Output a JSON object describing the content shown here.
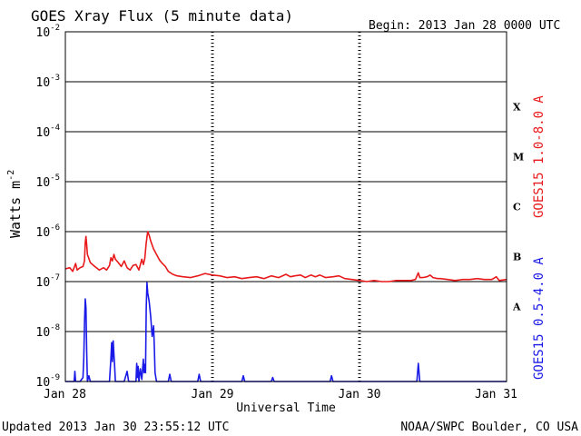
{
  "chart_data": {
    "type": "line",
    "title": "GOES Xray Flux (5 minute data)",
    "begin_label": "Begin:  2013 Jan 28 0000 UTC",
    "ylabel": "Watts m",
    "ylabel_sup": "-2",
    "xlabel": "Universal Time",
    "y_scale": "log",
    "ylim": [
      1e-09,
      0.01
    ],
    "y_ticks": [
      {
        "mant": "10",
        "exp": "-2",
        "value": 0.01
      },
      {
        "mant": "10",
        "exp": "-3",
        "value": 0.001
      },
      {
        "mant": "10",
        "exp": "-4",
        "value": 0.0001
      },
      {
        "mant": "10",
        "exp": "-5",
        "value": 1e-05
      },
      {
        "mant": "10",
        "exp": "-6",
        "value": 1e-06
      },
      {
        "mant": "10",
        "exp": "-7",
        "value": 1e-07
      },
      {
        "mant": "10",
        "exp": "-8",
        "value": 1e-08
      },
      {
        "mant": "10",
        "exp": "-9",
        "value": 1e-09
      }
    ],
    "x_unit": "days",
    "xlim": [
      0,
      3
    ],
    "x_ticks": [
      {
        "label": "Jan 28",
        "value": 0
      },
      {
        "label": "Jan 29",
        "value": 1
      },
      {
        "label": "Jan 30",
        "value": 2
      },
      {
        "label": "Jan 31",
        "value": 3
      }
    ],
    "flare_classes": [
      {
        "label": "X",
        "value": 0.000316
      },
      {
        "label": "M",
        "value": 3.16e-05
      },
      {
        "label": "C",
        "value": 3.16e-06
      },
      {
        "label": "B",
        "value": 3.16e-07
      },
      {
        "label": "A",
        "value": 3.16e-08
      }
    ],
    "grid": "horizontal lines at each decade; dotted vertical lines at day boundaries",
    "series": [
      {
        "name": "GOES15 1.0-8.0 A",
        "color": "#e8191a",
        "points": [
          [
            0.0,
            1.8e-07
          ],
          [
            0.03,
            1.9e-07
          ],
          [
            0.05,
            1.6e-07
          ],
          [
            0.07,
            2.3e-07
          ],
          [
            0.08,
            1.7e-07
          ],
          [
            0.1,
            1.9e-07
          ],
          [
            0.12,
            2e-07
          ],
          [
            0.13,
            2.6e-07
          ],
          [
            0.135,
            6e-07
          ],
          [
            0.14,
            8e-07
          ],
          [
            0.145,
            5.5e-07
          ],
          [
            0.15,
            3.5e-07
          ],
          [
            0.17,
            2.4e-07
          ],
          [
            0.2,
            2e-07
          ],
          [
            0.23,
            1.7e-07
          ],
          [
            0.26,
            1.9e-07
          ],
          [
            0.28,
            1.7e-07
          ],
          [
            0.3,
            2.1e-07
          ],
          [
            0.31,
            3e-07
          ],
          [
            0.32,
            2.6e-07
          ],
          [
            0.33,
            3.5e-07
          ],
          [
            0.34,
            2.8e-07
          ],
          [
            0.36,
            2.4e-07
          ],
          [
            0.38,
            2e-07
          ],
          [
            0.4,
            2.6e-07
          ],
          [
            0.42,
            1.9e-07
          ],
          [
            0.44,
            1.7e-07
          ],
          [
            0.46,
            2.1e-07
          ],
          [
            0.48,
            2.2e-07
          ],
          [
            0.5,
            1.7e-07
          ],
          [
            0.52,
            2.8e-07
          ],
          [
            0.53,
            2.2e-07
          ],
          [
            0.54,
            2.9e-07
          ],
          [
            0.55,
            6e-07
          ],
          [
            0.56,
            1e-06
          ],
          [
            0.57,
            8.5e-07
          ],
          [
            0.58,
            6.5e-07
          ],
          [
            0.6,
            4.5e-07
          ],
          [
            0.62,
            3.5e-07
          ],
          [
            0.64,
            2.7e-07
          ],
          [
            0.66,
            2.3e-07
          ],
          [
            0.68,
            2e-07
          ],
          [
            0.7,
            1.6e-07
          ],
          [
            0.73,
            1.4e-07
          ],
          [
            0.76,
            1.3e-07
          ],
          [
            0.8,
            1.25e-07
          ],
          [
            0.85,
            1.2e-07
          ],
          [
            0.9,
            1.3e-07
          ],
          [
            0.95,
            1.45e-07
          ],
          [
            1.0,
            1.35e-07
          ],
          [
            1.05,
            1.3e-07
          ],
          [
            1.1,
            1.2e-07
          ],
          [
            1.15,
            1.25e-07
          ],
          [
            1.2,
            1.15e-07
          ],
          [
            1.25,
            1.2e-07
          ],
          [
            1.3,
            1.25e-07
          ],
          [
            1.35,
            1.15e-07
          ],
          [
            1.4,
            1.3e-07
          ],
          [
            1.45,
            1.2e-07
          ],
          [
            1.5,
            1.4e-07
          ],
          [
            1.53,
            1.25e-07
          ],
          [
            1.56,
            1.3e-07
          ],
          [
            1.6,
            1.35e-07
          ],
          [
            1.63,
            1.2e-07
          ],
          [
            1.67,
            1.35e-07
          ],
          [
            1.7,
            1.25e-07
          ],
          [
            1.73,
            1.35e-07
          ],
          [
            1.77,
            1.2e-07
          ],
          [
            1.82,
            1.25e-07
          ],
          [
            1.86,
            1.3e-07
          ],
          [
            1.9,
            1.15e-07
          ],
          [
            1.95,
            1.1e-07
          ],
          [
            2.0,
            1.05e-07
          ],
          [
            2.05,
            1e-07
          ],
          [
            2.1,
            1.05e-07
          ],
          [
            2.15,
            1e-07
          ],
          [
            2.2,
            1e-07
          ],
          [
            2.25,
            1.05e-07
          ],
          [
            2.3,
            1.05e-07
          ],
          [
            2.35,
            1.05e-07
          ],
          [
            2.38,
            1.1e-07
          ],
          [
            2.4,
            1.5e-07
          ],
          [
            2.41,
            1.2e-07
          ],
          [
            2.43,
            1.2e-07
          ],
          [
            2.46,
            1.25e-07
          ],
          [
            2.48,
            1.35e-07
          ],
          [
            2.5,
            1.2e-07
          ],
          [
            2.53,
            1.15e-07
          ],
          [
            2.55,
            1.15e-07
          ],
          [
            2.6,
            1.1e-07
          ],
          [
            2.65,
            1.05e-07
          ],
          [
            2.7,
            1.1e-07
          ],
          [
            2.75,
            1.1e-07
          ],
          [
            2.8,
            1.15e-07
          ],
          [
            2.85,
            1.1e-07
          ],
          [
            2.9,
            1.1e-07
          ],
          [
            2.93,
            1.25e-07
          ],
          [
            2.95,
            1.05e-07
          ],
          [
            3.0,
            1.1e-07
          ]
        ]
      },
      {
        "name": "GOES15 0.5-4.0 A",
        "color": "#1a1ae8",
        "points": [
          [
            0.0,
            1e-09
          ],
          [
            0.06,
            1e-09
          ],
          [
            0.065,
            1.6e-09
          ],
          [
            0.07,
            1e-09
          ],
          [
            0.1,
            1e-09
          ],
          [
            0.12,
            1.2e-09
          ],
          [
            0.125,
            3e-09
          ],
          [
            0.13,
            1.5e-08
          ],
          [
            0.135,
            4.5e-08
          ],
          [
            0.14,
            3e-08
          ],
          [
            0.145,
            4e-09
          ],
          [
            0.15,
            1e-09
          ],
          [
            0.16,
            1.3e-09
          ],
          [
            0.17,
            1e-09
          ],
          [
            0.3,
            1e-09
          ],
          [
            0.31,
            3e-09
          ],
          [
            0.315,
            6e-09
          ],
          [
            0.32,
            2.5e-09
          ],
          [
            0.325,
            6.5e-09
          ],
          [
            0.33,
            3.5e-09
          ],
          [
            0.335,
            2e-09
          ],
          [
            0.34,
            1e-09
          ],
          [
            0.4,
            1e-09
          ],
          [
            0.42,
            1.6e-09
          ],
          [
            0.43,
            1e-09
          ],
          [
            0.48,
            1e-09
          ],
          [
            0.485,
            2.3e-09
          ],
          [
            0.49,
            1.2e-09
          ],
          [
            0.495,
            2e-09
          ],
          [
            0.5,
            1e-09
          ],
          [
            0.51,
            1.8e-09
          ],
          [
            0.52,
            1.1e-09
          ],
          [
            0.53,
            2.8e-09
          ],
          [
            0.535,
            1.5e-09
          ],
          [
            0.54,
            2.2e-09
          ],
          [
            0.545,
            1.5e-09
          ],
          [
            0.55,
            3e-08
          ],
          [
            0.555,
            9.5e-08
          ],
          [
            0.56,
            6e-08
          ],
          [
            0.57,
            4e-08
          ],
          [
            0.58,
            2e-08
          ],
          [
            0.59,
            8e-09
          ],
          [
            0.6,
            1.3e-08
          ],
          [
            0.605,
            5e-09
          ],
          [
            0.61,
            1.5e-09
          ],
          [
            0.62,
            1e-09
          ],
          [
            0.7,
            1e-09
          ],
          [
            0.71,
            1.4e-09
          ],
          [
            0.72,
            1e-09
          ],
          [
            0.9,
            1e-09
          ],
          [
            0.91,
            1.4e-09
          ],
          [
            0.92,
            1e-09
          ],
          [
            1.2,
            1e-09
          ],
          [
            1.21,
            1.3e-09
          ],
          [
            1.22,
            1e-09
          ],
          [
            1.4,
            1e-09
          ],
          [
            1.41,
            1.2e-09
          ],
          [
            1.42,
            1e-09
          ],
          [
            1.8,
            1e-09
          ],
          [
            1.81,
            1.3e-09
          ],
          [
            1.82,
            1e-09
          ],
          [
            2.39,
            1e-09
          ],
          [
            2.4,
            2.3e-09
          ],
          [
            2.41,
            1e-09
          ],
          [
            3.0,
            1e-09
          ]
        ]
      }
    ]
  },
  "footer": {
    "updated": "Updated 2013 Jan 30 23:55:12 UTC",
    "credit": "NOAA/SWPC Boulder, CO USA"
  }
}
